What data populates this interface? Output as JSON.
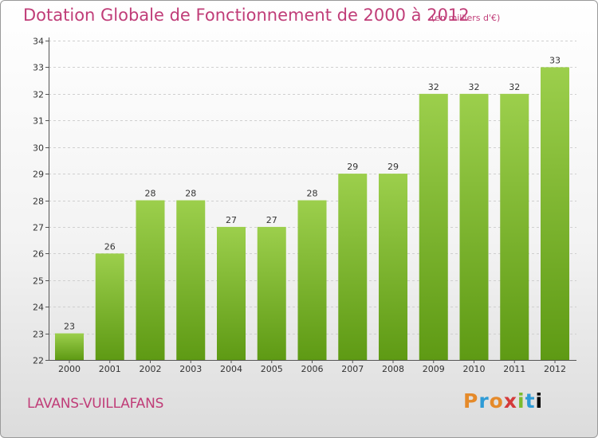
{
  "title": "Dotation Globale de Fonctionnement de 2000 à 2012",
  "unit": "(en milliers d'€)",
  "city": "LAVANS-VUILLAFANS",
  "logo": "Proxiti",
  "colors": {
    "title": "#c03d78",
    "bar_top": "#9ccf4c",
    "bar_bottom": "#5e9a14",
    "grid": "#cfcfcf"
  },
  "chart_data": {
    "type": "bar",
    "title": "Dotation Globale de Fonctionnement de 2000 à 2012",
    "subtitle": "(en milliers d'€)",
    "xlabel": "",
    "ylabel": "",
    "categories": [
      "2000",
      "2001",
      "2002",
      "2003",
      "2004",
      "2005",
      "2006",
      "2007",
      "2008",
      "2009",
      "2010",
      "2011",
      "2012"
    ],
    "values": [
      23,
      26,
      28,
      28,
      27,
      27,
      28,
      29,
      29,
      32,
      32,
      32,
      33
    ],
    "ylim": [
      22,
      34
    ],
    "yticks": [
      22,
      23,
      24,
      25,
      26,
      27,
      28,
      29,
      30,
      31,
      32,
      33,
      34
    ],
    "grid": true,
    "data_labels": true
  }
}
